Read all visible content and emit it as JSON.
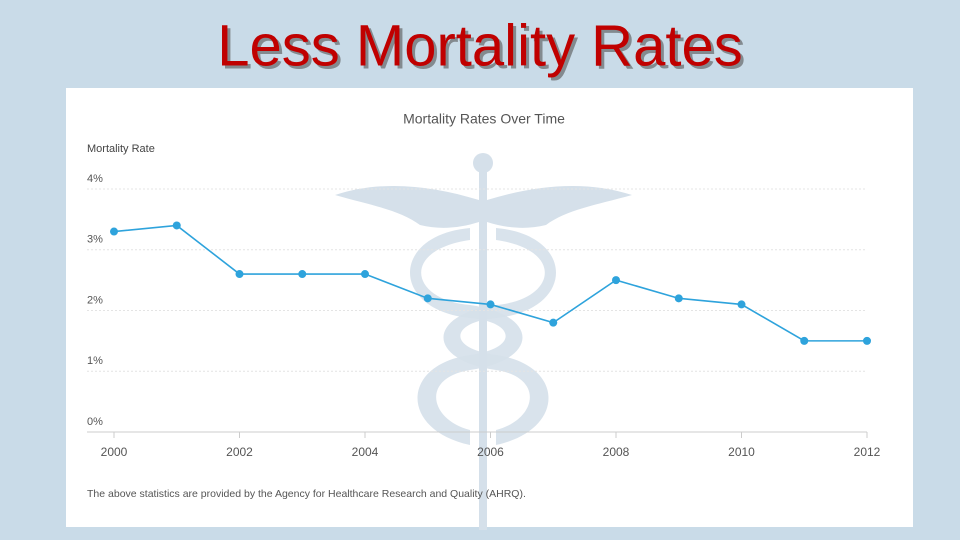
{
  "slide_title": "Less Mortality Rates",
  "chart_data": {
    "type": "line",
    "title": "Mortality Rates Over Time",
    "y_label": "Mortality Rate",
    "x": [
      2000,
      2001,
      2002,
      2003,
      2004,
      2005,
      2006,
      2007,
      2008,
      2009,
      2010,
      2011,
      2012
    ],
    "series": [
      {
        "name": "Mortality Rate",
        "color": "#2ea3dc",
        "values": [
          3.3,
          3.4,
          2.6,
          2.6,
          2.6,
          2.2,
          2.1,
          1.8,
          2.5,
          2.2,
          2.1,
          1.5,
          1.5
        ]
      }
    ],
    "xlim": [
      2000,
      2012
    ],
    "xticks": [
      2000,
      2002,
      2004,
      2006,
      2008,
      2010,
      2012
    ],
    "ylim": [
      0,
      4
    ],
    "yticks": [
      {
        "value": 0,
        "label": "0%"
      },
      {
        "value": 1,
        "label": "1%"
      },
      {
        "value": 2,
        "label": "2%"
      },
      {
        "value": 3,
        "label": "3%"
      },
      {
        "value": 4,
        "label": "4%"
      }
    ],
    "grid": true,
    "note": "The above statistics are provided by the Agency for Healthcare Research and Quality (AHRQ)."
  }
}
